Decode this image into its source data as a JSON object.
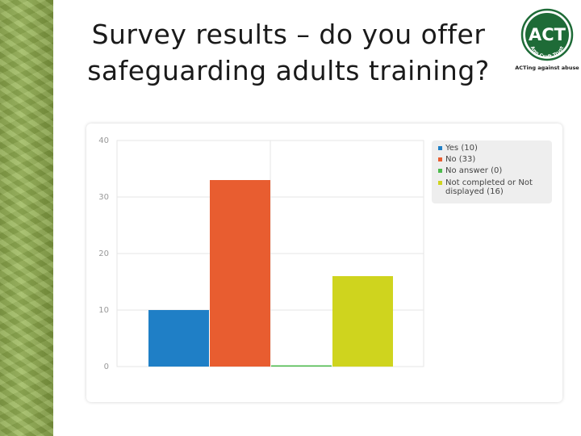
{
  "title": {
    "line1": "Survey results – do you offer",
    "line2": "safeguarding adults training?"
  },
  "logo": {
    "text": "ACT",
    "arc_text": "Ann Craft Trust",
    "tagline": "ACTing against abuse"
  },
  "colors": {
    "logo_green": "#1e6b37",
    "strip_green": "#8aa64a"
  },
  "chart_data": {
    "type": "bar",
    "categories": [
      "Yes",
      "No",
      "No answer",
      "Not completed or Not displayed"
    ],
    "values": [
      10,
      33,
      0,
      16
    ],
    "colors": [
      "#1f7fc6",
      "#e85d30",
      "#4cbb4c",
      "#cfd41e"
    ],
    "legend_labels": [
      "Yes (10)",
      "No (33)",
      "No answer (0)",
      "Not completed or Not displayed (16)"
    ],
    "yticks": [
      0,
      10,
      20,
      30,
      40
    ],
    "ylim": [
      0,
      40
    ],
    "grid": true,
    "legend_position": "top-right"
  }
}
